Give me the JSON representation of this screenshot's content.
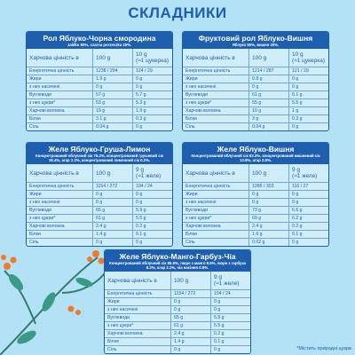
{
  "title": "СКЛАДНИКИ",
  "cards": [
    {
      "name": "Рол Яблуко-Чорна смородина",
      "ingredients": "Jabłko 80%, czarna porzeczka 20%.",
      "header_label": "Харчова цінність в",
      "col1": "100 g",
      "col2": "10 g",
      "col2_note": "(≈1 цукерка)",
      "rows": [
        [
          "Енергетична цінність",
          "1238 / 294",
          "124 / 29"
        ],
        [
          "Жири",
          "1.9 g",
          "0 g"
        ],
        [
          "з них насичені",
          "0 g",
          "0 g"
        ],
        [
          "Вуглеводи",
          "57 g",
          "5.7 g"
        ],
        [
          "з них цукри*",
          "53 g",
          "5.3 g"
        ],
        [
          "Харчові волокна",
          "19 g",
          "1.9 g"
        ],
        [
          "Білки",
          "3.1 g",
          "0.3 g"
        ],
        [
          "Сіль",
          "0.04 g",
          "0 g"
        ]
      ]
    },
    {
      "name": "Фруктовий рол Яблуко-Вишня",
      "ingredients": "Яблуко 80%, вишня 20%.",
      "header_label": "Харчова цінність в",
      "col1": "100 g",
      "col2": "10 g",
      "col2_note": "(≈1 цукерка)",
      "rows": [
        [
          "Енергетична цінність",
          "1214 / 287",
          "121 / 29"
        ],
        [
          "Жири",
          "0.8 g",
          "0 g"
        ],
        [
          "з них насичені",
          "0 g",
          "0 g"
        ],
        [
          "Вуглеводи",
          "61 g",
          "6.1 g"
        ],
        [
          "з них цукри*",
          "55 g",
          "5.5 g"
        ],
        [
          "Харчові волокна",
          "10 g",
          "1 g"
        ],
        [
          "Білки",
          "3 g",
          "0.3 g"
        ],
        [
          "Сіль",
          "0.04 g",
          "0 g"
        ]
      ]
    },
    {
      "name": "Желе Яблуко-Груша-Лимон",
      "ingredients": "Концентрований яблучний сік 78.2%, концентрований грушевий сік 18.4%, агар 2.2%, концентрований лимонний сік 0.2%.",
      "header_label": "Харчова цінність в",
      "col1": "100 g",
      "col2": "9 g",
      "col2_note": "(≈1 желе)",
      "rows": [
        [
          "Енергетична цінність",
          "1154 / 272",
          "104 / 24"
        ],
        [
          "Жири",
          "0 g",
          "0 g"
        ],
        [
          "з них насичені",
          "0 g",
          "0 g"
        ],
        [
          "Вуглеводи",
          "65 g",
          "5.9 g"
        ],
        [
          "з них цукри*",
          "61 g",
          "5.5 g"
        ],
        [
          "Харчові волокна",
          "2.4 g",
          "0.2 g"
        ],
        [
          "Білки",
          "1.4 g",
          "0.1 g"
        ],
        [
          "Сіль",
          "0 g",
          "0 g"
        ]
      ]
    },
    {
      "name": "Желе Яблуко-Вишня",
      "ingredients": "Концентрований яблучний сік 83.3%, концентрований вишневий сік 13.8%, агар 2.8%.",
      "header_label": "Харчова цінність в",
      "col1": "100 g",
      "col2": "9 g",
      "col2_note": "(≈1 желе)",
      "rows": [
        [
          "Енергетична цінність",
          "1286 / 303",
          "116 / 27"
        ],
        [
          "Жири",
          "0 g",
          "0 g"
        ],
        [
          "з них насичені",
          "0 g",
          "0 g"
        ],
        [
          "Вуглеводи",
          "73 g",
          "6.6 g"
        ],
        [
          "з них цукри*",
          "69 g",
          "6.2 g"
        ],
        [
          "Харчові волокна",
          "2.4 g",
          "0.2 g"
        ],
        [
          "Білки",
          "1.6 g",
          "0.1 g"
        ],
        [
          "Сіль",
          "0.02 g",
          "0 g"
        ]
      ]
    },
    {
      "name": "Желе Яблуко-Манго-Гарбуз-Чіа",
      "ingredients": "Концентрований яблучний сік 85.5%, пюре з манго 8.5%, пюре з гарбуза 8.2%, агар 2.1%, чіа насіння 0.8%.",
      "header_label": "Харчова цінність в",
      "col1": "100 g",
      "col2": "9 g",
      "col2_note": "(≈1 желе)",
      "rows": [
        [
          "Енергетична цінність",
          "1154 / 272",
          "104 / 24"
        ],
        [
          "Жири",
          "0 g",
          "0 g"
        ],
        [
          "з них насичені",
          "0 g",
          "0 g"
        ],
        [
          "Вуглеводи",
          "65 g",
          "5.9 g"
        ],
        [
          "з них цукри*",
          "61 g",
          "5.5 g"
        ],
        [
          "Харчові волокна",
          "2.4 g",
          "0.2 g"
        ],
        [
          "Білки",
          "1.4 g",
          "0.1 g"
        ],
        [
          "Сіль",
          "0 g",
          "0 g"
        ]
      ]
    }
  ],
  "footnote": "*Містить природні цукри"
}
